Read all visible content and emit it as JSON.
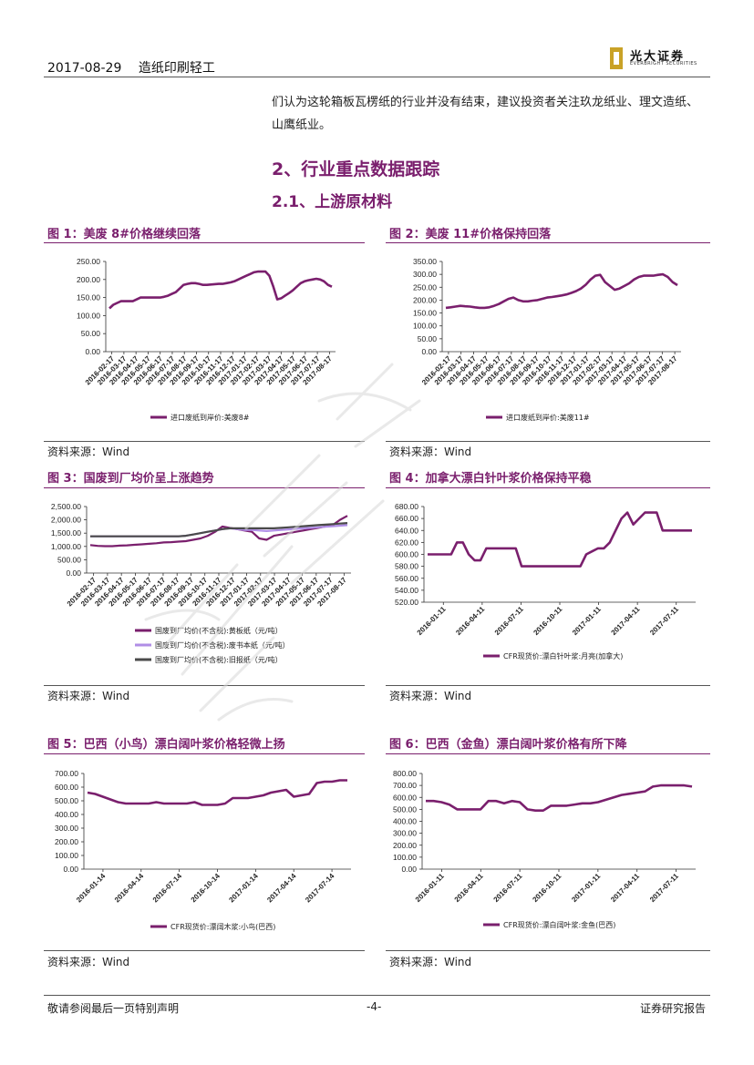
{
  "header": {
    "date": "2017-08-29",
    "industry": "造纸印刷轻工",
    "logo_cn": "光大证券",
    "logo_en": "EVERBRIGHT SECURITIES"
  },
  "intro": "们认为这轮箱板瓦楞纸的行业并没有结束，建议投资者关注玖龙纸业、理文造纸、山鹰纸业。",
  "section": {
    "title": "2、行业重点数据跟踪",
    "subtitle": "2.1、上游原材料"
  },
  "source_label": "资料来源：Wind",
  "figures": [
    {
      "title": "图 1：美废 8#价格继续回落"
    },
    {
      "title": "图 2：美废 11#价格保持回落"
    },
    {
      "title": "图 3：国废到厂均价呈上涨趋势"
    },
    {
      "title": "图 4：加拿大漂白针叶浆价格保持平稳"
    },
    {
      "title": "图 5：巴西（小鸟）漂白阔叶浆价格轻微上扬"
    },
    {
      "title": "图 6：巴西（金鱼）漂白阔叶浆价格有所下降"
    }
  ],
  "footer": {
    "left": "敬请参阅最后一页特别声明",
    "page": "-4-",
    "right": "证券研究报告"
  },
  "colors": {
    "accent": "#7a1f6d",
    "series_purple": "#7a1f6d",
    "series_lilac": "#b08ee6",
    "series_gray": "#4a4a4a"
  },
  "chart_data": [
    {
      "type": "line",
      "ylim": [
        0,
        250
      ],
      "yticks": [
        "0.00",
        "50.00",
        "100.00",
        "150.00",
        "200.00",
        "250.00"
      ],
      "xticks": [
        "2016-02-17",
        "2016-03-17",
        "2016-04-17",
        "2016-05-17",
        "2016-06-17",
        "2016-07-17",
        "2016-08-17",
        "2016-09-17",
        "2016-10-17",
        "2016-11-17",
        "2016-12-17",
        "2017-01-17",
        "2017-02-17",
        "2017-03-17",
        "2017-04-17",
        "2017-05-17",
        "2017-06-17",
        "2017-07-17",
        "2017-08-17"
      ],
      "series": [
        {
          "name": "进口废纸到岸价:美废8#",
          "values": [
            120,
            130,
            135,
            140,
            140,
            140,
            140,
            145,
            150,
            150,
            150,
            150,
            150,
            150,
            152,
            155,
            160,
            165,
            175,
            185,
            188,
            190,
            190,
            188,
            185,
            185,
            186,
            187,
            188,
            188,
            190,
            192,
            195,
            200,
            205,
            210,
            215,
            220,
            222,
            222,
            222,
            210,
            180,
            145,
            148,
            155,
            162,
            170,
            180,
            190,
            195,
            198,
            200,
            202,
            200,
            195,
            185,
            180
          ]
        }
      ]
    },
    {
      "type": "line",
      "ylim": [
        0,
        350
      ],
      "yticks": [
        "0.00",
        "50.00",
        "100.00",
        "150.00",
        "200.00",
        "250.00",
        "300.00",
        "350.00"
      ],
      "xticks": [
        "2016-02-17",
        "2016-03-17",
        "2016-04-17",
        "2016-05-17",
        "2016-06-17",
        "2016-07-17",
        "2016-08-17",
        "2016-09-17",
        "2016-10-17",
        "2016-11-17",
        "2016-12-17",
        "2017-01-17",
        "2017-02-17",
        "2017-03-17",
        "2017-04-17",
        "2017-05-17",
        "2017-06-17",
        "2017-07-17",
        "2017-08-17"
      ],
      "series": [
        {
          "name": "进口废纸到岸价:美废11#",
          "values": [
            170,
            172,
            175,
            178,
            176,
            175,
            172,
            170,
            170,
            172,
            178,
            185,
            195,
            205,
            210,
            200,
            195,
            195,
            198,
            200,
            205,
            210,
            212,
            215,
            218,
            222,
            228,
            235,
            245,
            260,
            280,
            295,
            298,
            270,
            255,
            240,
            245,
            255,
            265,
            280,
            290,
            295,
            295,
            295,
            298,
            300,
            290,
            270,
            258
          ]
        }
      ]
    },
    {
      "type": "line",
      "ylim": [
        0,
        2500
      ],
      "yticks": [
        "0.00",
        "500.00",
        "1,000.00",
        "1,500.00",
        "2,000.00",
        "2,500.00"
      ],
      "xticks": [
        "2016-02-17",
        "2016-03-17",
        "2016-04-17",
        "2016-05-17",
        "2016-06-17",
        "2016-07-17",
        "2016-08-17",
        "2016-09-17",
        "2016-10-17",
        "2016-11-17",
        "2016-12-17",
        "2017-01-17",
        "2017-02-17",
        "2017-03-17",
        "2017-04-17",
        "2017-05-17",
        "2017-06-17",
        "2017-07-17",
        "2017-08-17"
      ],
      "series": [
        {
          "name": "国废到厂均价(不含税):黄板纸（元/吨）",
          "values": [
            1050,
            1020,
            1010,
            1010,
            1030,
            1040,
            1060,
            1080,
            1100,
            1120,
            1150,
            1160,
            1180,
            1200,
            1250,
            1300,
            1400,
            1550,
            1750,
            1700,
            1650,
            1600,
            1550,
            1300,
            1250,
            1400,
            1450,
            1500,
            1550,
            1600,
            1650,
            1700,
            1750,
            1800,
            2000,
            2150
          ]
        },
        {
          "name": "国废到厂均价(不含税):废书本纸（元/吨）",
          "values": [
            1380,
            1380,
            1380,
            1380,
            1380,
            1380,
            1380,
            1380,
            1380,
            1380,
            1380,
            1380,
            1380,
            1400,
            1450,
            1500,
            1550,
            1600,
            1650,
            1680,
            1650,
            1620,
            1620,
            1600,
            1580,
            1600,
            1620,
            1640,
            1660,
            1680,
            1700,
            1720,
            1740,
            1760,
            1780,
            1800
          ]
        },
        {
          "name": "国废到厂均价(不含税):旧报纸（元/吨）",
          "values": [
            1380,
            1380,
            1380,
            1380,
            1380,
            1380,
            1380,
            1380,
            1380,
            1380,
            1380,
            1380,
            1380,
            1400,
            1450,
            1500,
            1550,
            1600,
            1650,
            1680,
            1680,
            1680,
            1680,
            1680,
            1680,
            1680,
            1700,
            1720,
            1740,
            1760,
            1780,
            1800,
            1820,
            1840,
            1860,
            1880
          ]
        }
      ]
    },
    {
      "type": "line",
      "ylim": [
        520,
        680
      ],
      "yticks": [
        "520.00",
        "540.00",
        "560.00",
        "580.00",
        "600.00",
        "620.00",
        "640.00",
        "660.00",
        "680.00"
      ],
      "xticks": [
        "2016-01-11",
        "2016-04-11",
        "2016-07-11",
        "2016-10-11",
        "2017-01-11",
        "2017-04-11",
        "2017-07-11"
      ],
      "series": [
        {
          "name": "CFR现货价:漂白针叶浆:月亮(加拿大)",
          "values": [
            600,
            600,
            600,
            600,
            600,
            620,
            620,
            600,
            590,
            590,
            610,
            610,
            610,
            610,
            610,
            610,
            580,
            580,
            580,
            580,
            580,
            580,
            580,
            580,
            580,
            580,
            580,
            600,
            605,
            610,
            610,
            620,
            640,
            660,
            670,
            650,
            660,
            670,
            670,
            670,
            640,
            640,
            640,
            640,
            640,
            640
          ]
        }
      ]
    },
    {
      "type": "line",
      "ylim": [
        0,
        700
      ],
      "yticks": [
        "0.00",
        "100.00",
        "200.00",
        "300.00",
        "400.00",
        "500.00",
        "600.00",
        "700.00"
      ],
      "xticks": [
        "2016-01-14",
        "2016-04-14",
        "2016-07-14",
        "2016-10-14",
        "2017-01-14",
        "2017-04-14",
        "2017-07-14"
      ],
      "series": [
        {
          "name": "CFR现货价:漂阔木浆:小鸟(巴西)",
          "values": [
            560,
            550,
            530,
            510,
            490,
            480,
            480,
            480,
            480,
            490,
            480,
            480,
            480,
            480,
            490,
            470,
            470,
            470,
            480,
            520,
            520,
            520,
            530,
            540,
            560,
            570,
            580,
            530,
            540,
            550,
            630,
            640,
            640,
            650,
            650
          ]
        }
      ]
    },
    {
      "type": "line",
      "ylim": [
        0,
        800
      ],
      "yticks": [
        "0.00",
        "100.00",
        "200.00",
        "300.00",
        "400.00",
        "500.00",
        "600.00",
        "700.00",
        "800.00"
      ],
      "xticks": [
        "2016-01-11",
        "2016-04-11",
        "2016-07-11",
        "2016-10-11",
        "2017-01-11",
        "2017-04-11",
        "2017-07-11"
      ],
      "series": [
        {
          "name": "CFR现货价:漂白阔叶浆:金鱼(巴西)",
          "values": [
            570,
            570,
            560,
            540,
            500,
            500,
            500,
            500,
            570,
            570,
            550,
            570,
            560,
            500,
            490,
            490,
            530,
            530,
            530,
            540,
            550,
            550,
            560,
            580,
            600,
            620,
            630,
            640,
            650,
            690,
            700,
            700,
            700,
            700,
            690
          ]
        }
      ]
    }
  ]
}
